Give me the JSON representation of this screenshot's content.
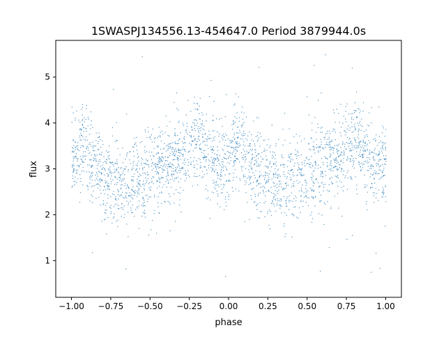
{
  "chart_data": {
    "type": "scatter",
    "title": "1SWASPJ134556.13-454647.0 Period 3879944.0s",
    "xlabel": "phase",
    "ylabel": "flux",
    "xlim": [
      -1.1,
      1.1
    ],
    "ylim": [
      0.2,
      5.8
    ],
    "x_ticks": [
      -1.0,
      -0.75,
      -0.5,
      -0.25,
      0.0,
      0.25,
      0.5,
      0.75,
      1.0
    ],
    "x_tick_labels": [
      "−1.00",
      "−0.75",
      "−0.50",
      "−0.25",
      "0.00",
      "0.25",
      "0.50",
      "0.75",
      "1.00"
    ],
    "y_ticks": [
      1,
      2,
      3,
      4,
      5
    ],
    "y_tick_labels": [
      "1",
      "2",
      "3",
      "4",
      "5"
    ],
    "grid": false,
    "marker_color": "#1f77b4",
    "series": [
      {
        "phase_range": [
          -1.0,
          1.0
        ],
        "folded_twice": true,
        "profile": [
          {
            "x": -1.0,
            "y": 3.1
          },
          {
            "x": -0.96,
            "y": 3.4
          },
          {
            "x": -0.93,
            "y": 3.6
          },
          {
            "x": -0.9,
            "y": 3.3
          },
          {
            "x": -0.85,
            "y": 3.0
          },
          {
            "x": -0.8,
            "y": 2.9
          },
          {
            "x": -0.75,
            "y": 2.8
          },
          {
            "x": -0.7,
            "y": 2.7
          },
          {
            "x": -0.65,
            "y": 2.7
          },
          {
            "x": -0.6,
            "y": 2.8
          },
          {
            "x": -0.55,
            "y": 2.8
          },
          {
            "x": -0.5,
            "y": 2.9
          },
          {
            "x": -0.45,
            "y": 3.0
          },
          {
            "x": -0.4,
            "y": 3.1
          },
          {
            "x": -0.35,
            "y": 3.2
          },
          {
            "x": -0.3,
            "y": 3.3
          },
          {
            "x": -0.25,
            "y": 3.5
          },
          {
            "x": -0.2,
            "y": 3.7
          },
          {
            "x": -0.15,
            "y": 3.4
          },
          {
            "x": -0.1,
            "y": 3.2
          },
          {
            "x": -0.05,
            "y": 3.1
          },
          {
            "x": 0.0,
            "y": 3.1
          }
        ],
        "scatter_sigma": 0.45
      }
    ]
  }
}
